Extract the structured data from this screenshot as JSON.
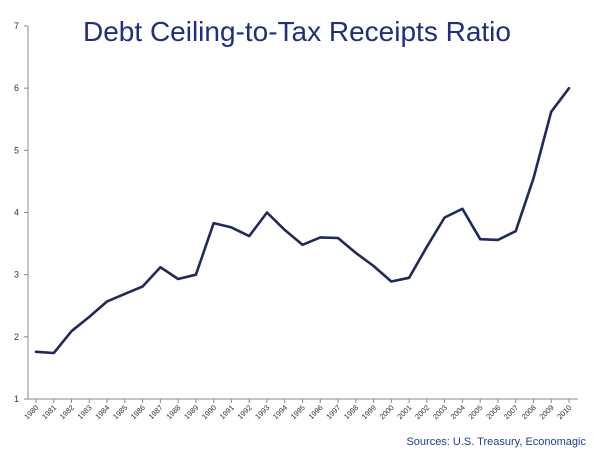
{
  "chart_data": {
    "type": "line",
    "title": "Debt Ceiling-to-Tax Receipts Ratio",
    "xlabel": "",
    "ylabel": "",
    "ylim": [
      1,
      7
    ],
    "yticks": [
      "1",
      "2",
      "3",
      "4",
      "5",
      "6",
      "7"
    ],
    "categories": [
      "1980",
      "1981",
      "1982",
      "1983",
      "1984",
      "1985",
      "1986",
      "1987",
      "1988",
      "1989",
      "1990",
      "1991",
      "1992",
      "1993",
      "1994",
      "1995",
      "1996",
      "1997",
      "1998",
      "1999",
      "2000",
      "2001",
      "2002",
      "2003",
      "2004",
      "2005",
      "2006",
      "2007",
      "2008",
      "2009",
      "2010"
    ],
    "series": [
      {
        "values": [
          1.76,
          1.74,
          2.09,
          2.32,
          2.57,
          2.69,
          2.81,
          3.12,
          2.93,
          3.0,
          3.83,
          3.76,
          3.62,
          4.0,
          3.72,
          3.48,
          3.6,
          3.59,
          3.35,
          3.14,
          2.89,
          2.95,
          3.45,
          3.92,
          4.06,
          3.57,
          3.56,
          3.7,
          4.55,
          5.62,
          6.0
        ]
      }
    ],
    "grid": false,
    "legend": "none",
    "line_color": "#1f2a5a",
    "title_color": "#1f2f7a",
    "source_color": "#1f3f8f",
    "source": "Sources: U.S. Treasury,  Economagic"
  }
}
